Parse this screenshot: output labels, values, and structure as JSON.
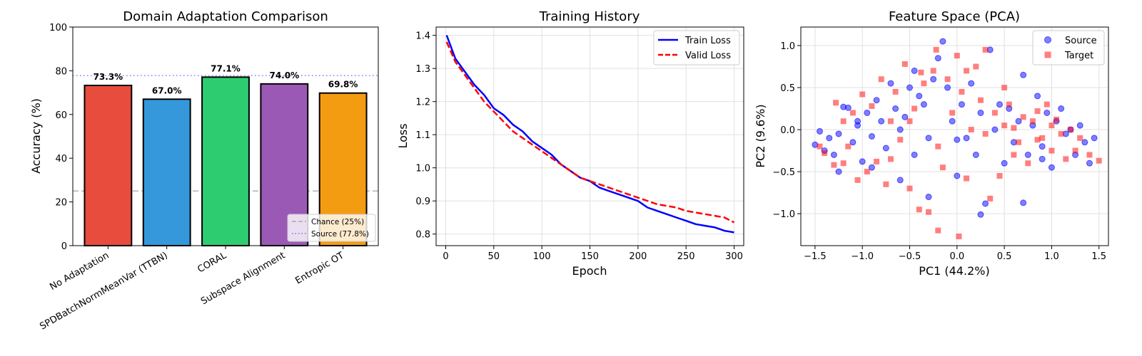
{
  "chart_data": [
    {
      "type": "bar",
      "title": "Domain Adaptation Comparison",
      "ylabel": "Accuracy (%)",
      "ylim": [
        0,
        100
      ],
      "yticks": [
        0,
        20,
        40,
        60,
        80,
        100
      ],
      "categories": [
        "No Adaptation",
        "SPDBatchNormMeanVar (TTBN)",
        "CORAL",
        "Subspace Alignment",
        "Entropic OT"
      ],
      "values": [
        73.3,
        67.0,
        77.1,
        74.0,
        69.8
      ],
      "value_labels": [
        "73.3%",
        "67.0%",
        "77.1%",
        "74.0%",
        "69.8%"
      ],
      "colors": [
        "#e74c3c",
        "#3498db",
        "#2ecc71",
        "#9b59b6",
        "#f39c12"
      ],
      "reference_lines": [
        {
          "name": "Chance (25%)",
          "value": 25,
          "color": "#aaaaaa",
          "style": "dashed"
        },
        {
          "name": "Source (77.8%)",
          "value": 77.8,
          "color": "#7b68ee",
          "style": "dotted"
        }
      ],
      "legend_position": "lower-right",
      "grid": false
    },
    {
      "type": "line",
      "title": "Training History",
      "xlabel": "Epoch",
      "ylabel": "Loss",
      "xlim": [
        -10,
        310
      ],
      "ylim": [
        0.765,
        1.425
      ],
      "xticks": [
        0,
        50,
        100,
        150,
        200,
        250,
        300
      ],
      "yticks": [
        0.8,
        0.9,
        1.0,
        1.1,
        1.2,
        1.3,
        1.4
      ],
      "series": [
        {
          "name": "Train Loss",
          "color": "#0000ff",
          "style": "solid",
          "x": [
            1,
            10,
            20,
            30,
            40,
            50,
            60,
            70,
            80,
            90,
            100,
            110,
            120,
            130,
            140,
            150,
            160,
            170,
            180,
            190,
            200,
            210,
            220,
            230,
            240,
            250,
            260,
            270,
            280,
            290,
            300
          ],
          "y": [
            1.4,
            1.33,
            1.29,
            1.25,
            1.22,
            1.18,
            1.16,
            1.13,
            1.11,
            1.08,
            1.06,
            1.04,
            1.01,
            0.99,
            0.97,
            0.96,
            0.94,
            0.93,
            0.92,
            0.91,
            0.9,
            0.88,
            0.87,
            0.86,
            0.85,
            0.84,
            0.83,
            0.825,
            0.82,
            0.81,
            0.805
          ]
        },
        {
          "name": "Valid Loss",
          "color": "#ff0000",
          "style": "dashed",
          "x": [
            1,
            10,
            20,
            30,
            40,
            50,
            60,
            70,
            80,
            90,
            100,
            110,
            120,
            130,
            140,
            150,
            160,
            170,
            180,
            190,
            200,
            210,
            220,
            230,
            240,
            250,
            260,
            270,
            280,
            290,
            300
          ],
          "y": [
            1.38,
            1.32,
            1.28,
            1.24,
            1.2,
            1.17,
            1.14,
            1.11,
            1.09,
            1.07,
            1.05,
            1.03,
            1.01,
            0.99,
            0.97,
            0.96,
            0.95,
            0.94,
            0.93,
            0.92,
            0.91,
            0.9,
            0.89,
            0.885,
            0.88,
            0.87,
            0.865,
            0.86,
            0.855,
            0.85,
            0.835
          ]
        }
      ],
      "legend_position": "upper-right",
      "grid": true
    },
    {
      "type": "scatter",
      "title": "Feature Space (PCA)",
      "xlabel": "PC1 (44.2%)",
      "ylabel": "PC2 (9.6%)",
      "xlim": [
        -1.65,
        1.6
      ],
      "ylim": [
        -1.38,
        1.22
      ],
      "xticks": [
        -1.5,
        -1.0,
        -0.5,
        0.0,
        0.5,
        1.0,
        1.5
      ],
      "yticks": [
        -1.0,
        -0.5,
        0.0,
        0.5,
        1.0
      ],
      "series": [
        {
          "name": "Source",
          "color": "#0000ff",
          "marker": "circle",
          "points": [
            [
              -1.5,
              -0.18
            ],
            [
              -1.45,
              -0.02
            ],
            [
              -1.4,
              -0.25
            ],
            [
              -1.35,
              -0.1
            ],
            [
              -1.3,
              -0.3
            ],
            [
              -1.25,
              -0.05
            ],
            [
              -1.2,
              0.27
            ],
            [
              -1.15,
              0.26
            ],
            [
              -1.1,
              -0.15
            ],
            [
              -1.05,
              0.1
            ],
            [
              -1.0,
              -0.38
            ],
            [
              -0.95,
              0.2
            ],
            [
              -0.9,
              -0.08
            ],
            [
              -0.85,
              0.35
            ],
            [
              -0.8,
              0.1
            ],
            [
              -0.75,
              -0.22
            ],
            [
              -0.7,
              0.55
            ],
            [
              -0.65,
              0.25
            ],
            [
              -0.6,
              0.0
            ],
            [
              -0.55,
              0.15
            ],
            [
              -0.5,
              0.5
            ],
            [
              -0.45,
              -0.3
            ],
            [
              -0.4,
              0.4
            ],
            [
              -0.35,
              0.3
            ],
            [
              -0.3,
              -0.1
            ],
            [
              -0.25,
              0.6
            ],
            [
              -0.2,
              0.85
            ],
            [
              -0.15,
              1.05
            ],
            [
              -0.1,
              0.5
            ],
            [
              -0.05,
              0.1
            ],
            [
              0.0,
              -0.12
            ],
            [
              0.05,
              0.3
            ],
            [
              0.1,
              -0.1
            ],
            [
              0.15,
              0.55
            ],
            [
              0.2,
              -0.3
            ],
            [
              0.25,
              0.2
            ],
            [
              0.3,
              -0.88
            ],
            [
              0.35,
              0.95
            ],
            [
              0.4,
              0.0
            ],
            [
              0.45,
              0.3
            ],
            [
              0.5,
              -0.4
            ],
            [
              0.55,
              0.25
            ],
            [
              0.6,
              -0.15
            ],
            [
              0.65,
              0.1
            ],
            [
              0.7,
              0.65
            ],
            [
              0.75,
              -0.3
            ],
            [
              0.8,
              0.05
            ],
            [
              0.85,
              0.4
            ],
            [
              0.9,
              -0.2
            ],
            [
              0.95,
              0.2
            ],
            [
              1.0,
              -0.45
            ],
            [
              1.05,
              0.1
            ],
            [
              1.1,
              0.25
            ],
            [
              1.15,
              -0.05
            ],
            [
              1.2,
              0.0
            ],
            [
              1.25,
              -0.3
            ],
            [
              1.3,
              0.05
            ],
            [
              1.35,
              -0.15
            ],
            [
              1.4,
              -0.4
            ],
            [
              1.45,
              -0.1
            ],
            [
              -1.25,
              -0.5
            ],
            [
              -0.9,
              -0.45
            ],
            [
              -0.6,
              -0.6
            ],
            [
              -0.3,
              -0.8
            ],
            [
              0.0,
              -0.55
            ],
            [
              0.25,
              -1.01
            ],
            [
              0.7,
              -0.87
            ],
            [
              0.9,
              -0.35
            ],
            [
              -1.05,
              0.05
            ],
            [
              -0.45,
              0.7
            ]
          ]
        },
        {
          "name": "Target",
          "color": "#ff0000",
          "marker": "square",
          "points": [
            [
              -1.45,
              -0.2
            ],
            [
              -1.4,
              -0.28
            ],
            [
              -1.3,
              -0.42
            ],
            [
              -1.28,
              0.32
            ],
            [
              -1.2,
              0.1
            ],
            [
              -1.15,
              -0.2
            ],
            [
              -1.1,
              0.2
            ],
            [
              -1.05,
              -0.6
            ],
            [
              -1.0,
              0.42
            ],
            [
              -0.95,
              -0.5
            ],
            [
              -0.9,
              0.28
            ],
            [
              -0.85,
              -0.38
            ],
            [
              -0.8,
              0.6
            ],
            [
              -0.75,
              -0.65
            ],
            [
              -0.7,
              0.1
            ],
            [
              -0.65,
              0.45
            ],
            [
              -0.6,
              -0.12
            ],
            [
              -0.55,
              0.78
            ],
            [
              -0.5,
              -0.7
            ],
            [
              -0.45,
              0.25
            ],
            [
              -0.4,
              -0.95
            ],
            [
              -0.38,
              0.68
            ],
            [
              -0.35,
              0.55
            ],
            [
              -0.3,
              -0.98
            ],
            [
              -0.25,
              0.7
            ],
            [
              -0.22,
              0.95
            ],
            [
              -0.2,
              -1.2
            ],
            [
              -0.15,
              -0.45
            ],
            [
              -0.1,
              0.6
            ],
            [
              -0.05,
              0.2
            ],
            [
              0.0,
              0.88
            ],
            [
              0.02,
              -1.27
            ],
            [
              0.05,
              0.45
            ],
            [
              0.1,
              -0.58
            ],
            [
              0.15,
              0.0
            ],
            [
              0.2,
              0.75
            ],
            [
              0.25,
              0.35
            ],
            [
              0.3,
              0.95
            ],
            [
              0.35,
              -0.82
            ],
            [
              0.4,
              0.2
            ],
            [
              0.45,
              -0.55
            ],
            [
              0.5,
              0.05
            ],
            [
              0.55,
              0.3
            ],
            [
              0.6,
              -0.3
            ],
            [
              0.65,
              -0.15
            ],
            [
              0.7,
              0.15
            ],
            [
              0.75,
              -0.4
            ],
            [
              0.8,
              0.1
            ],
            [
              0.85,
              0.22
            ],
            [
              0.9,
              -0.1
            ],
            [
              0.95,
              0.3
            ],
            [
              1.0,
              -0.25
            ],
            [
              1.05,
              0.12
            ],
            [
              1.1,
              -0.05
            ],
            [
              1.15,
              -0.35
            ],
            [
              1.2,
              0.0
            ],
            [
              1.25,
              -0.25
            ],
            [
              1.3,
              -0.1
            ],
            [
              1.4,
              -0.3
            ],
            [
              1.5,
              -0.37
            ],
            [
              -1.2,
              -0.4
            ],
            [
              -0.7,
              -0.35
            ],
            [
              -0.2,
              -0.2
            ],
            [
              0.3,
              -0.05
            ],
            [
              0.6,
              0.02
            ],
            [
              0.85,
              -0.12
            ],
            [
              1.0,
              0.05
            ],
            [
              -0.5,
              0.1
            ],
            [
              0.1,
              0.7
            ],
            [
              0.5,
              0.5
            ]
          ]
        }
      ],
      "legend_position": "upper-right",
      "grid": true
    }
  ]
}
